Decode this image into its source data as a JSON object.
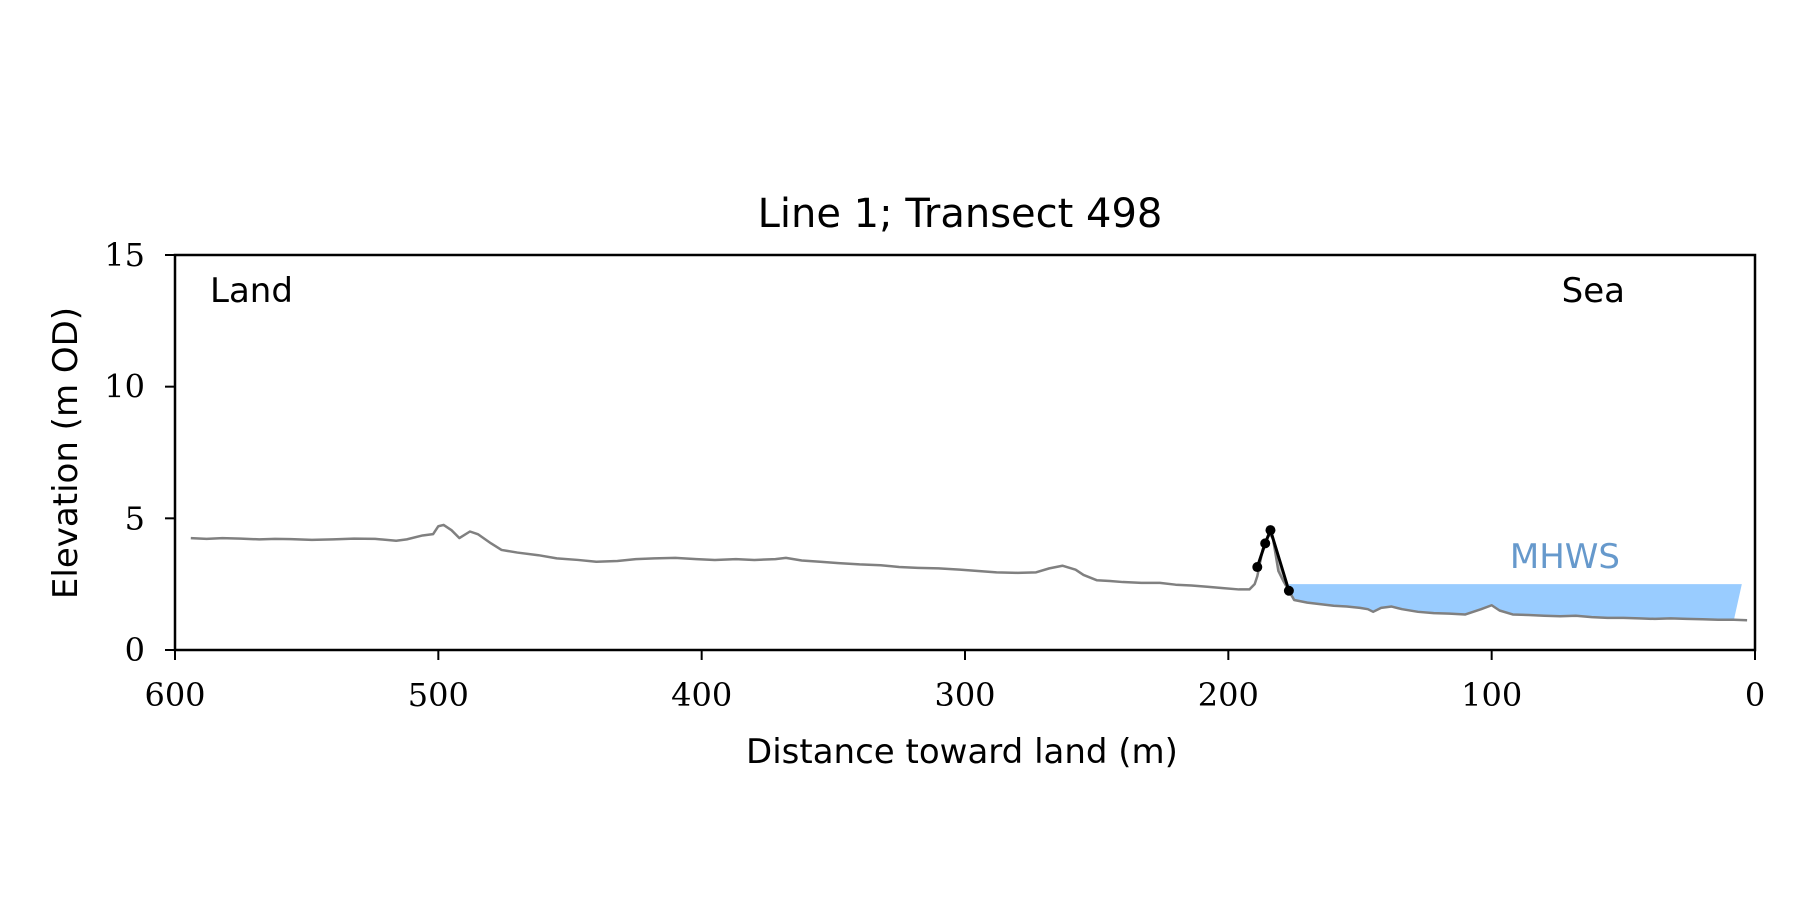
{
  "chart_data": {
    "type": "line",
    "title": "Line 1; Transect 498",
    "xlabel": "Distance toward land (m)",
    "ylabel": "Elevation (m OD)",
    "xlim": [
      600,
      0
    ],
    "ylim": [
      0,
      15
    ],
    "x_ticks": [
      600,
      500,
      400,
      300,
      200,
      100,
      0
    ],
    "y_ticks": [
      0,
      5,
      10,
      15
    ],
    "grid": false,
    "corner_labels": {
      "left": "Land",
      "right": "Sea"
    },
    "mhws": {
      "label": "MHWS",
      "elevation": 2.5,
      "x_from": 177,
      "x_to": 5,
      "color": "#99ccff",
      "label_color": "#6699cc"
    },
    "series": [
      {
        "color": "#808080",
        "points": [
          [
            594,
            4.25
          ],
          [
            588,
            4.22
          ],
          [
            582,
            4.25
          ],
          [
            575,
            4.23
          ],
          [
            568,
            4.2
          ],
          [
            562,
            4.22
          ],
          [
            556,
            4.21
          ],
          [
            548,
            4.18
          ],
          [
            540,
            4.2
          ],
          [
            532,
            4.23
          ],
          [
            524,
            4.22
          ],
          [
            516,
            4.15
          ],
          [
            512,
            4.2
          ],
          [
            506,
            4.35
          ],
          [
            502,
            4.4
          ],
          [
            500,
            4.7
          ],
          [
            498,
            4.75
          ],
          [
            495,
            4.55
          ],
          [
            492,
            4.25
          ],
          [
            488,
            4.5
          ],
          [
            485,
            4.4
          ],
          [
            480,
            4.05
          ],
          [
            476,
            3.8
          ],
          [
            470,
            3.7
          ],
          [
            462,
            3.6
          ],
          [
            455,
            3.48
          ],
          [
            447,
            3.42
          ],
          [
            440,
            3.35
          ],
          [
            432,
            3.38
          ],
          [
            425,
            3.45
          ],
          [
            418,
            3.48
          ],
          [
            410,
            3.5
          ],
          [
            402,
            3.45
          ],
          [
            395,
            3.42
          ],
          [
            387,
            3.45
          ],
          [
            380,
            3.42
          ],
          [
            372,
            3.45
          ],
          [
            368,
            3.5
          ],
          [
            362,
            3.4
          ],
          [
            355,
            3.35
          ],
          [
            348,
            3.3
          ],
          [
            340,
            3.25
          ],
          [
            332,
            3.22
          ],
          [
            325,
            3.15
          ],
          [
            318,
            3.12
          ],
          [
            310,
            3.1
          ],
          [
            302,
            3.05
          ],
          [
            295,
            3.0
          ],
          [
            288,
            2.95
          ],
          [
            280,
            2.93
          ],
          [
            273,
            2.95
          ],
          [
            268,
            3.1
          ],
          [
            263,
            3.2
          ],
          [
            258,
            3.05
          ],
          [
            255,
            2.85
          ],
          [
            250,
            2.65
          ],
          [
            245,
            2.62
          ],
          [
            240,
            2.58
          ],
          [
            233,
            2.55
          ],
          [
            226,
            2.55
          ],
          [
            220,
            2.48
          ],
          [
            214,
            2.45
          ],
          [
            208,
            2.4
          ],
          [
            202,
            2.35
          ],
          [
            196,
            2.3
          ],
          [
            192,
            2.3
          ],
          [
            190,
            2.5
          ],
          [
            189,
            2.8
          ],
          [
            188,
            3.3
          ],
          [
            187,
            3.8
          ],
          [
            186,
            4.1
          ],
          [
            185,
            4.3
          ],
          [
            184,
            4.4
          ],
          [
            183,
            4.2
          ],
          [
            182,
            3.6
          ],
          [
            181,
            3.0
          ],
          [
            179,
            2.6
          ],
          [
            177,
            2.25
          ],
          [
            175,
            1.9
          ],
          [
            170,
            1.8
          ],
          [
            166,
            1.75
          ],
          [
            160,
            1.68
          ],
          [
            155,
            1.65
          ],
          [
            150,
            1.6
          ],
          [
            147,
            1.55
          ],
          [
            145,
            1.45
          ],
          [
            142,
            1.6
          ],
          [
            138,
            1.65
          ],
          [
            134,
            1.55
          ],
          [
            128,
            1.45
          ],
          [
            122,
            1.4
          ],
          [
            116,
            1.38
          ],
          [
            110,
            1.35
          ],
          [
            104,
            1.55
          ],
          [
            100,
            1.7
          ],
          [
            97,
            1.5
          ],
          [
            92,
            1.35
          ],
          [
            86,
            1.33
          ],
          [
            80,
            1.3
          ],
          [
            74,
            1.28
          ],
          [
            68,
            1.3
          ],
          [
            62,
            1.25
          ],
          [
            56,
            1.22
          ],
          [
            50,
            1.22
          ],
          [
            44,
            1.2
          ],
          [
            38,
            1.18
          ],
          [
            32,
            1.2
          ],
          [
            26,
            1.18
          ],
          [
            20,
            1.17
          ],
          [
            14,
            1.15
          ],
          [
            8,
            1.15
          ],
          [
            3,
            1.13
          ]
        ]
      },
      {
        "color": "#000000",
        "markers": true,
        "points": [
          [
            189,
            3.15
          ],
          [
            186,
            4.05
          ],
          [
            184,
            4.55
          ],
          [
            177,
            2.25
          ]
        ]
      }
    ]
  }
}
